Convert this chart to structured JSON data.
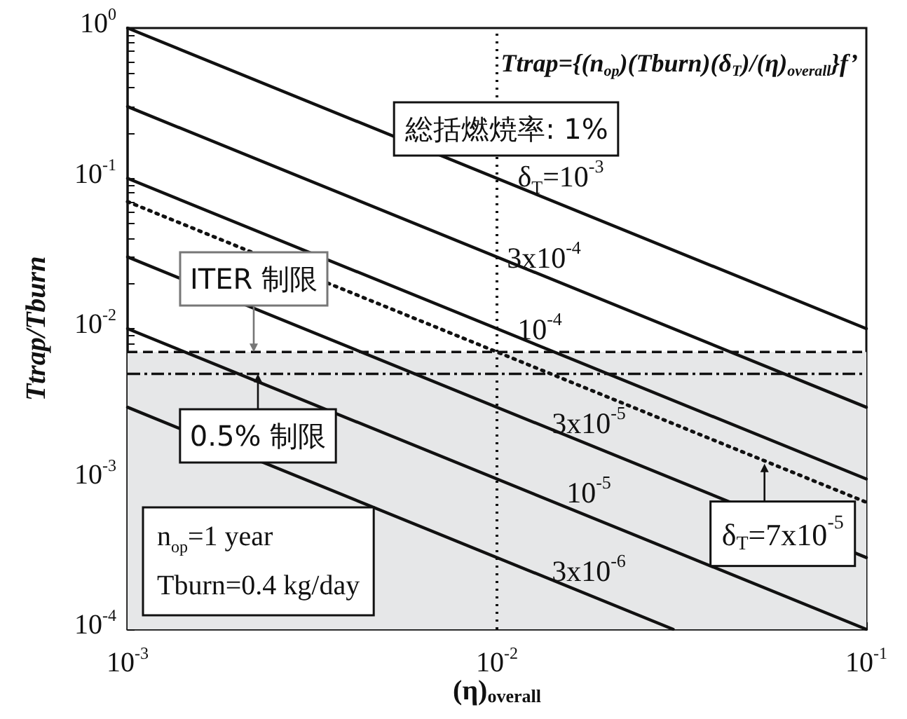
{
  "chart_data": {
    "type": "line",
    "xlabel": "(η)$_{overall}$",
    "ylabel": "Ttrap/Tburn",
    "log": "xy",
    "marker": "none",
    "xlim": [
      0.001,
      0.1
    ],
    "ylim": [
      0.0001,
      1
    ],
    "xticks": [
      {
        "value": 0.001,
        "label": "10$^{-3}$"
      },
      {
        "value": 0.002,
        "label": null
      },
      {
        "value": 0.003,
        "label": null
      },
      {
        "value": 0.004,
        "label": null
      },
      {
        "value": 0.005,
        "label": null
      },
      {
        "value": 0.006,
        "label": null
      },
      {
        "value": 0.007,
        "label": null
      },
      {
        "value": 0.008,
        "label": null
      },
      {
        "value": 0.009,
        "label": null
      },
      {
        "value": 0.01,
        "label": "10$^{-2}$"
      },
      {
        "value": 0.02,
        "label": null
      },
      {
        "value": 0.03,
        "label": null
      },
      {
        "value": 0.04,
        "label": null
      },
      {
        "value": 0.05,
        "label": null
      },
      {
        "value": 0.06,
        "label": null
      },
      {
        "value": 0.07,
        "label": null
      },
      {
        "value": 0.08,
        "label": null
      },
      {
        "value": 0.09,
        "label": null
      },
      {
        "value": 0.1,
        "label": "10$^{-1}$"
      }
    ],
    "yticks": [
      {
        "value": 0.0001,
        "label": "10$^{-4}$"
      },
      {
        "value": 0.0002,
        "label": null
      },
      {
        "value": 0.0003,
        "label": null
      },
      {
        "value": 0.0004,
        "label": null
      },
      {
        "value": 0.0005,
        "label": null
      },
      {
        "value": 0.0006,
        "label": null
      },
      {
        "value": 0.0007,
        "label": null
      },
      {
        "value": 0.0008,
        "label": null
      },
      {
        "value": 0.0009,
        "label": null
      },
      {
        "value": 0.001,
        "label": "10$^{-3}$"
      },
      {
        "value": 0.002,
        "label": null
      },
      {
        "value": 0.003,
        "label": null
      },
      {
        "value": 0.004,
        "label": null
      },
      {
        "value": 0.005,
        "label": null
      },
      {
        "value": 0.006,
        "label": null
      },
      {
        "value": 0.007,
        "label": null
      },
      {
        "value": 0.008,
        "label": null
      },
      {
        "value": 0.009,
        "label": null
      },
      {
        "value": 0.01,
        "label": "10$^{-2}$"
      },
      {
        "value": 0.02,
        "label": null
      },
      {
        "value": 0.03,
        "label": null
      },
      {
        "value": 0.04,
        "label": null
      },
      {
        "value": 0.05,
        "label": null
      },
      {
        "value": 0.06,
        "label": null
      },
      {
        "value": 0.07,
        "label": null
      },
      {
        "value": 0.08,
        "label": null
      },
      {
        "value": 0.09,
        "label": null
      },
      {
        "value": 0.1,
        "label": "10$^{-1}$"
      },
      {
        "value": 0.2,
        "label": null
      },
      {
        "value": 0.3,
        "label": null
      },
      {
        "value": 0.4,
        "label": null
      },
      {
        "value": 0.5,
        "label": null
      },
      {
        "value": 0.6,
        "label": null
      },
      {
        "value": 0.7,
        "label": null
      },
      {
        "value": 0.8,
        "label": null
      },
      {
        "value": 0.9,
        "label": null
      },
      {
        "value": 1,
        "label": "10$^{0}$"
      }
    ],
    "annotations": [
      "Ttrap={(n$_{op}$)(Tburn)(δ$_{T}$)/(η)$_{overall}$}f’",
      "n$_{op}$=1 year",
      "Tburn=0.4 kg/day",
      {
        "text": "δ$_{T}$=7x10$^{-5}$",
        "x": 0.053,
        "y": 0.00132
      }
    ],
    "series": [
      {
        "name": "δ$_{T}$=10$^{-3}$",
        "color": "#111111",
        "x": [
          0.001,
          0.1
        ],
        "values": [
          1,
          0.01
        ]
      },
      {
        "name": "3x10$^{-4}$",
        "color": "#111111",
        "x": [
          0.001,
          0.1
        ],
        "values": [
          0.3,
          0.003
        ]
      },
      {
        "name": "10$^{-4}$",
        "color": "#111111",
        "x": [
          0.001,
          0.1
        ],
        "values": [
          0.1,
          0.001
        ]
      },
      {
        "name": "3x10$^{-5}$",
        "color": "#111111",
        "x": [
          0.001,
          0.1
        ],
        "values": [
          0.03,
          0.0003
        ]
      },
      {
        "name": "10$^{-5}$",
        "color": "#111111",
        "x": [
          0.001,
          0.1
        ],
        "values": [
          0.01,
          0.0001
        ]
      },
      {
        "name": "3x10$^{-6}$",
        "color": "#111111",
        "x": [
          0.001,
          0.03
        ],
        "values": [
          0.003,
          0.0001
        ]
      },
      {
        "color": "#111111",
        "line_style": "dotted",
        "x": [
          0.001,
          0.1
        ],
        "values": [
          0.07,
          0.0007
        ]
      }
    ],
    "ref_lines": [
      {
        "axis": "x",
        "value": 0.01,
        "label": "総括燃焼率: 1%",
        "line_style": "dotted",
        "color": "#111111"
      },
      {
        "axis": "y",
        "value": 0.007,
        "label": "ITER 制限",
        "line_style": "dashed",
        "color": "#111111"
      },
      {
        "axis": "y",
        "value": 0.005,
        "label": "0.5% 制限",
        "line_style": "dashdot",
        "color": "#111111"
      }
    ],
    "bands": [
      {
        "axis": "y",
        "from": 0.0001,
        "to": 0.007,
        "color": "#e6e7e8"
      }
    ]
  }
}
